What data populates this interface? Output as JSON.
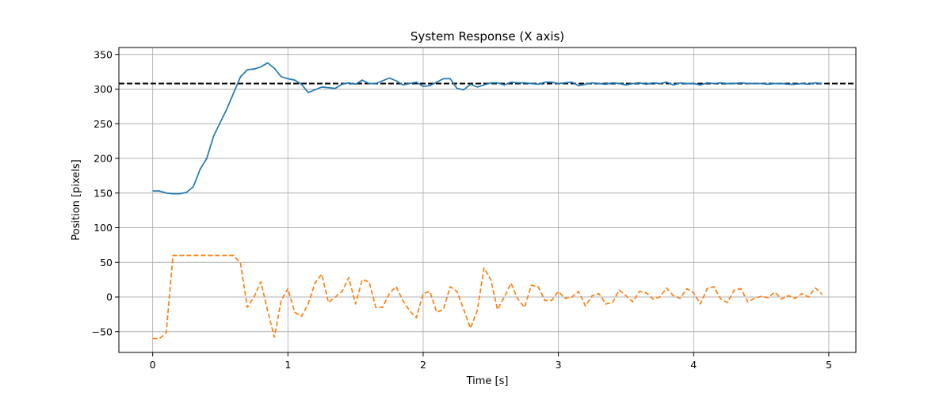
{
  "chart_data": {
    "type": "line",
    "title": "System Response (X axis)",
    "xlabel": "Time [s]",
    "ylabel": "Position [pixels]",
    "xlim": [
      -0.25,
      5.2
    ],
    "ylim": [
      -80,
      360
    ],
    "xticks": [
      0,
      1,
      2,
      3,
      4,
      5
    ],
    "yticks": [
      -50,
      0,
      50,
      100,
      150,
      200,
      250,
      300,
      350
    ],
    "grid": true,
    "colors": {
      "series_position": "#1f77b4",
      "series_control": "#ff7f0e",
      "target": "#000000",
      "grid": "#b0b0b0"
    },
    "target_line": {
      "y": 308,
      "style": "dashed"
    },
    "series": [
      {
        "style": "solid",
        "color": "#1f77b4",
        "x": [
          0,
          0.05,
          0.1,
          0.15,
          0.2,
          0.25,
          0.3,
          0.35,
          0.4,
          0.45,
          0.5,
          0.55,
          0.6,
          0.65,
          0.7,
          0.75,
          0.8,
          0.85,
          0.9,
          0.95,
          1.0,
          1.05,
          1.1,
          1.15,
          1.2,
          1.25,
          1.3,
          1.35,
          1.4,
          1.45,
          1.5,
          1.55,
          1.6,
          1.65,
          1.7,
          1.75,
          1.8,
          1.85,
          1.9,
          1.95,
          2.0,
          2.05,
          2.1,
          2.15,
          2.2,
          2.25,
          2.3,
          2.35,
          2.4,
          2.45,
          2.5,
          2.55,
          2.6,
          2.65,
          2.7,
          2.75,
          2.8,
          2.85,
          2.9,
          2.95,
          3.0,
          3.05,
          3.1,
          3.15,
          3.2,
          3.25,
          3.3,
          3.35,
          3.4,
          3.45,
          3.5,
          3.55,
          3.6,
          3.65,
          3.7,
          3.75,
          3.8,
          3.85,
          3.9,
          3.95,
          4.0,
          4.05,
          4.1,
          4.15,
          4.2,
          4.25,
          4.3,
          4.35,
          4.4,
          4.45,
          4.5,
          4.55,
          4.6,
          4.65,
          4.7,
          4.75,
          4.8,
          4.85,
          4.9,
          4.95
        ],
        "y": [
          153,
          153,
          150,
          149,
          149,
          151,
          159,
          184,
          200,
          232,
          252,
          272,
          295,
          318,
          328,
          329,
          332,
          338,
          330,
          318,
          315,
          313,
          307,
          295,
          299,
          303,
          302,
          301,
          307,
          309,
          307,
          313,
          308,
          308,
          312,
          316,
          312,
          306,
          308,
          310,
          304,
          305,
          310,
          315,
          315,
          301,
          299,
          307,
          303,
          306,
          309,
          309,
          306,
          310,
          309,
          309,
          308,
          307,
          310,
          310,
          308,
          309,
          310,
          305,
          307,
          309,
          308,
          307,
          309,
          308,
          306,
          308,
          309,
          307,
          309,
          308,
          310,
          306,
          309,
          308,
          308,
          306,
          309,
          308,
          309,
          308,
          308,
          309,
          308,
          308,
          308,
          307,
          308,
          308,
          307,
          307,
          308,
          307,
          309,
          308
        ]
      },
      {
        "style": "dashed",
        "color": "#ff7f0e",
        "x": [
          0,
          0.05,
          0.1,
          0.15,
          0.2,
          0.25,
          0.3,
          0.35,
          0.4,
          0.45,
          0.5,
          0.55,
          0.6,
          0.65,
          0.7,
          0.75,
          0.8,
          0.85,
          0.9,
          0.95,
          1.0,
          1.05,
          1.1,
          1.15,
          1.2,
          1.25,
          1.3,
          1.35,
          1.4,
          1.45,
          1.5,
          1.55,
          1.6,
          1.65,
          1.7,
          1.75,
          1.8,
          1.85,
          1.9,
          1.95,
          2.0,
          2.05,
          2.1,
          2.15,
          2.2,
          2.25,
          2.3,
          2.35,
          2.4,
          2.45,
          2.5,
          2.55,
          2.6,
          2.65,
          2.7,
          2.75,
          2.8,
          2.85,
          2.9,
          2.95,
          3.0,
          3.05,
          3.1,
          3.15,
          3.2,
          3.25,
          3.3,
          3.35,
          3.4,
          3.45,
          3.5,
          3.55,
          3.6,
          3.65,
          3.7,
          3.75,
          3.8,
          3.85,
          3.9,
          3.95,
          4.0,
          4.05,
          4.1,
          4.15,
          4.2,
          4.25,
          4.3,
          4.35,
          4.4,
          4.45,
          4.5,
          4.55,
          4.6,
          4.65,
          4.7,
          4.75,
          4.8,
          4.85,
          4.9,
          4.95
        ],
        "y": [
          -60,
          -60,
          -52,
          60,
          60,
          60,
          60,
          60,
          60,
          60,
          60,
          60,
          60,
          48,
          -15,
          0,
          22,
          -20,
          -58,
          -5,
          12,
          -22,
          -28,
          -10,
          20,
          33,
          -8,
          0,
          8,
          28,
          -10,
          25,
          22,
          -15,
          -15,
          5,
          15,
          -5,
          -20,
          -30,
          5,
          8,
          -22,
          -18,
          15,
          8,
          -18,
          -45,
          -20,
          42,
          25,
          -18,
          0,
          20,
          -3,
          -15,
          17,
          15,
          -5,
          -5,
          8,
          -2,
          0,
          8,
          -13,
          2,
          5,
          -10,
          -8,
          10,
          2,
          -7,
          8,
          6,
          -3,
          0,
          13,
          2,
          -2,
          12,
          6,
          -10,
          12,
          15,
          -3,
          -8,
          10,
          12,
          -7,
          -2,
          1,
          -1,
          7,
          -3,
          2,
          -2,
          5,
          0,
          13,
          4
        ]
      }
    ]
  }
}
